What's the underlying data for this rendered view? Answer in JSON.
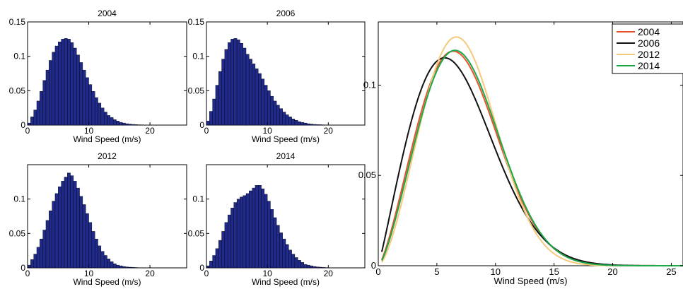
{
  "chart_data": [
    {
      "type": "bar",
      "title": "2004",
      "xlabel": "Wind Speed (m/s)",
      "ylabel": "",
      "xlim": [
        0,
        26
      ],
      "ylim": [
        0,
        0.15
      ],
      "xticks": [
        0,
        10,
        20
      ],
      "yticks": [
        0,
        0.05,
        0.1,
        0.15
      ],
      "ytick_labels": [
        "0",
        "0.05",
        "0.1",
        "0.15"
      ],
      "bar_color": "#1f2a8a",
      "bin_width": 0.5,
      "x": [
        0.25,
        0.75,
        1.25,
        1.75,
        2.25,
        2.75,
        3.25,
        3.75,
        4.25,
        4.75,
        5.25,
        5.75,
        6.25,
        6.75,
        7.25,
        7.75,
        8.25,
        8.75,
        9.25,
        9.75,
        10.25,
        10.75,
        11.25,
        11.75,
        12.25,
        12.75,
        13.25,
        13.75,
        14.25,
        14.75,
        15.25,
        15.75,
        16.25,
        16.75,
        17.25,
        17.75,
        18.25,
        18.75,
        19.25,
        19.75,
        20.25,
        20.75,
        21.25,
        21.75
      ],
      "values": [
        0.003,
        0.012,
        0.022,
        0.035,
        0.049,
        0.065,
        0.08,
        0.094,
        0.106,
        0.115,
        0.121,
        0.125,
        0.126,
        0.125,
        0.12,
        0.112,
        0.102,
        0.091,
        0.08,
        0.069,
        0.059,
        0.049,
        0.04,
        0.032,
        0.025,
        0.019,
        0.014,
        0.011,
        0.008,
        0.006,
        0.004,
        0.003,
        0.002,
        0.0015,
        0.001,
        0.0008,
        0.0005,
        0.0004,
        0.0003,
        0.0002,
        0.0001,
        0.0001,
        0.0001,
        0.0001
      ]
    },
    {
      "type": "bar",
      "title": "2006",
      "xlabel": "Wind Speed (m/s)",
      "ylabel": "",
      "xlim": [
        0,
        26
      ],
      "ylim": [
        0,
        0.15
      ],
      "xticks": [
        0,
        10,
        20
      ],
      "yticks": [
        0,
        0.05,
        0.1,
        0.15
      ],
      "ytick_labels": [
        "0",
        "0.05",
        "0.1",
        "0.15"
      ],
      "bar_color": "#1f2a8a",
      "bin_width": 0.5,
      "x": [
        0.25,
        0.75,
        1.25,
        1.75,
        2.25,
        2.75,
        3.25,
        3.75,
        4.25,
        4.75,
        5.25,
        5.75,
        6.25,
        6.75,
        7.25,
        7.75,
        8.25,
        8.75,
        9.25,
        9.75,
        10.25,
        10.75,
        11.25,
        11.75,
        12.25,
        12.75,
        13.25,
        13.75,
        14.25,
        14.75,
        15.25,
        15.75,
        16.25,
        16.75,
        17.25,
        17.75,
        18.25,
        18.75,
        19.25,
        19.75,
        20.25,
        20.75,
        21.25,
        21.75,
        22.25
      ],
      "values": [
        0.006,
        0.02,
        0.038,
        0.058,
        0.078,
        0.096,
        0.11,
        0.12,
        0.125,
        0.126,
        0.124,
        0.119,
        0.112,
        0.103,
        0.096,
        0.089,
        0.082,
        0.075,
        0.067,
        0.058,
        0.05,
        0.042,
        0.035,
        0.029,
        0.024,
        0.019,
        0.015,
        0.012,
        0.009,
        0.007,
        0.005,
        0.004,
        0.003,
        0.002,
        0.0015,
        0.001,
        0.0008,
        0.0006,
        0.0004,
        0.0003,
        0.0002,
        0.0002,
        0.0001,
        0.0001,
        0.0001
      ]
    },
    {
      "type": "bar",
      "title": "2012",
      "xlabel": "Wind Speed (m/s)",
      "ylabel": "",
      "xlim": [
        0,
        26
      ],
      "ylim": [
        0,
        0.15
      ],
      "xticks": [
        0,
        10,
        20
      ],
      "yticks": [
        0,
        0.05,
        0.1
      ],
      "ytick_labels": [
        "0",
        "0.05",
        "0.1"
      ],
      "bar_color": "#1f2a8a",
      "bin_width": 0.5,
      "x": [
        0.25,
        0.75,
        1.25,
        1.75,
        2.25,
        2.75,
        3.25,
        3.75,
        4.25,
        4.75,
        5.25,
        5.75,
        6.25,
        6.75,
        7.25,
        7.75,
        8.25,
        8.75,
        9.25,
        9.75,
        10.25,
        10.75,
        11.25,
        11.75,
        12.25,
        12.75,
        13.25,
        13.75,
        14.25,
        14.75,
        15.25,
        15.75,
        16.25,
        16.75,
        17.25,
        17.75,
        18.25,
        18.75,
        19.25,
        19.75
      ],
      "values": [
        0.004,
        0.012,
        0.02,
        0.03,
        0.042,
        0.055,
        0.069,
        0.083,
        0.097,
        0.108,
        0.118,
        0.126,
        0.132,
        0.138,
        0.134,
        0.126,
        0.116,
        0.104,
        0.092,
        0.079,
        0.066,
        0.053,
        0.042,
        0.032,
        0.024,
        0.018,
        0.013,
        0.009,
        0.006,
        0.004,
        0.003,
        0.002,
        0.0014,
        0.001,
        0.0007,
        0.0005,
        0.0003,
        0.0002,
        0.0001,
        0.0001
      ]
    },
    {
      "type": "bar",
      "title": "2014",
      "xlabel": "Wind Speed (m/s)",
      "ylabel": "",
      "xlim": [
        0,
        26
      ],
      "ylim": [
        0,
        0.15
      ],
      "xticks": [
        0,
        10,
        20
      ],
      "yticks": [
        0,
        0.05,
        0.1
      ],
      "ytick_labels": [
        "0",
        "0.05",
        "0.1"
      ],
      "bar_color": "#1f2a8a",
      "bin_width": 0.5,
      "x": [
        0.25,
        0.75,
        1.25,
        1.75,
        2.25,
        2.75,
        3.25,
        3.75,
        4.25,
        4.75,
        5.25,
        5.75,
        6.25,
        6.75,
        7.25,
        7.75,
        8.25,
        8.75,
        9.25,
        9.75,
        10.25,
        10.75,
        11.25,
        11.75,
        12.25,
        12.75,
        13.25,
        13.75,
        14.25,
        14.75,
        15.25,
        15.75,
        16.25,
        16.75,
        17.25,
        17.75,
        18.25,
        18.75,
        19.25,
        19.75,
        20.25
      ],
      "values": [
        0.003,
        0.01,
        0.018,
        0.028,
        0.04,
        0.053,
        0.066,
        0.077,
        0.087,
        0.095,
        0.1,
        0.103,
        0.105,
        0.108,
        0.112,
        0.116,
        0.12,
        0.12,
        0.115,
        0.107,
        0.097,
        0.085,
        0.073,
        0.062,
        0.051,
        0.042,
        0.034,
        0.026,
        0.02,
        0.015,
        0.011,
        0.008,
        0.005,
        0.004,
        0.003,
        0.002,
        0.0014,
        0.001,
        0.0006,
        0.0004,
        0.0002
      ]
    },
    {
      "type": "line",
      "title": "",
      "xlabel": "Wind Speed (m/s)",
      "ylabel": "",
      "xlim": [
        0,
        26
      ],
      "ylim": [
        0,
        0.135
      ],
      "xticks": [
        0,
        5,
        10,
        15,
        20,
        25
      ],
      "yticks": [
        0,
        0.05,
        0.1
      ],
      "ytick_labels": [
        "0",
        "0.05",
        "0.1"
      ],
      "legend": "top-right",
      "series": [
        {
          "name": "2004",
          "color": "#e8532b",
          "k": 2.35,
          "c": 8.1
        },
        {
          "name": "2006",
          "color": "#111111",
          "k": 2.1,
          "c": 7.7
        },
        {
          "name": "2012",
          "color": "#f5c97a",
          "k": 2.55,
          "c": 8.1
        },
        {
          "name": "2014",
          "color": "#1aa84a",
          "k": 2.4,
          "c": 8.2
        }
      ]
    }
  ]
}
